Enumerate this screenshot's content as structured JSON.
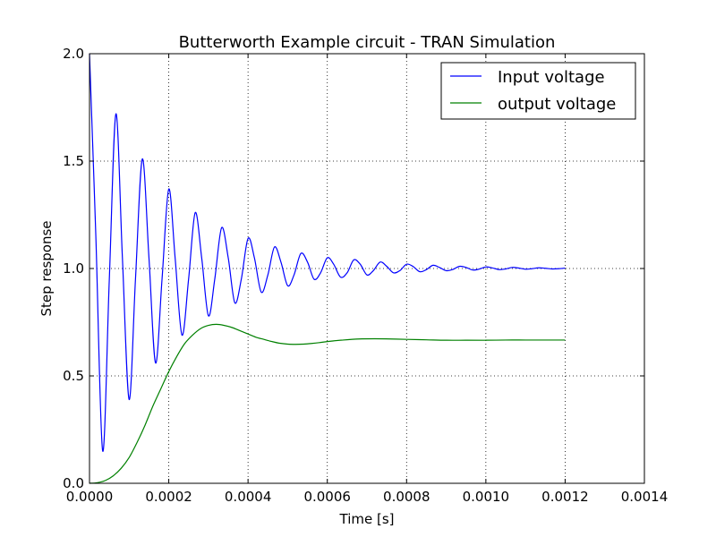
{
  "chart_data": {
    "type": "line",
    "title": "Butterworth Example circuit - TRAN Simulation",
    "xlabel": "Time [s]",
    "ylabel": "Step response",
    "xlim": [
      0,
      0.0014
    ],
    "ylim": [
      0,
      2.0
    ],
    "x_ticks": [
      "0.0000",
      "0.0002",
      "0.0004",
      "0.0006",
      "0.0008",
      "0.0010",
      "0.0012",
      "0.0014"
    ],
    "y_ticks": [
      "0.0",
      "0.5",
      "1.0",
      "1.5",
      "2.0"
    ],
    "grid": true,
    "legend_position": "top-right",
    "series": [
      {
        "name": "Input voltage",
        "color": "#0000ff",
        "x": [
          0,
          1.6e-05,
          3.33e-05,
          5e-05,
          6.67e-05,
          8.3e-05,
          0.0001,
          0.000116,
          0.0001333,
          0.00015,
          0.0001667,
          0.000183,
          0.0002,
          0.000216,
          0.0002333,
          0.00025,
          0.0002667,
          0.000283,
          0.0003,
          0.000316,
          0.0003333,
          0.00035,
          0.0003667,
          0.000383,
          0.0004,
          0.000416,
          0.0004333,
          0.00045,
          0.0004667,
          0.000483,
          0.0005,
          0.000516,
          0.0005333,
          0.00055,
          0.0005667,
          0.000583,
          0.0006,
          0.000616,
          0.0006333,
          0.00065,
          0.0006667,
          0.000683,
          0.0007,
          0.000716,
          0.0007333,
          0.00075,
          0.0007667,
          0.000783,
          0.0008,
          0.000816,
          0.0008333,
          0.00085,
          0.0008667,
          0.000883,
          0.0009,
          0.000916,
          0.0009333,
          0.00095,
          0.0009667,
          0.000983,
          0.001,
          0.001016,
          0.0010333,
          0.00105,
          0.0010667,
          0.001083,
          0.0011,
          0.001116,
          0.0011333,
          0.00115,
          0.0011667,
          0.001183,
          0.0012
        ],
        "y": [
          2.0,
          1.15,
          0.15,
          0.95,
          1.72,
          1.05,
          0.39,
          0.95,
          1.51,
          1.05,
          0.56,
          0.95,
          1.37,
          1.05,
          0.69,
          0.95,
          1.26,
          1.05,
          0.78,
          0.95,
          1.19,
          1.05,
          0.84,
          0.95,
          1.14,
          1.05,
          0.89,
          0.97,
          1.1,
          1.03,
          0.92,
          0.97,
          1.07,
          1.03,
          0.95,
          0.98,
          1.05,
          1.02,
          0.96,
          0.98,
          1.04,
          1.02,
          0.97,
          0.99,
          1.03,
          1.01,
          0.98,
          0.99,
          1.02,
          1.01,
          0.985,
          0.995,
          1.015,
          1.005,
          0.99,
          0.995,
          1.01,
          1.005,
          0.993,
          0.997,
          1.007,
          1.003,
          0.995,
          0.998,
          1.005,
          1.002,
          0.997,
          0.999,
          1.003,
          1.001,
          0.998,
          0.999,
          1.002
        ]
      },
      {
        "name": "output voltage",
        "color": "#008000",
        "x": [
          0,
          2e-05,
          4e-05,
          6e-05,
          8e-05,
          0.0001,
          0.00012,
          0.00014,
          0.00016,
          0.00018,
          0.0002,
          0.00022,
          0.00024,
          0.00026,
          0.00028,
          0.0003,
          0.00032,
          0.00034,
          0.00036,
          0.00038,
          0.0004,
          0.00042,
          0.00044,
          0.00046,
          0.00048,
          0.0005,
          0.00052,
          0.00054,
          0.00056,
          0.00058,
          0.0006,
          0.00064,
          0.00068,
          0.00072,
          0.00076,
          0.0008,
          0.00085,
          0.0009,
          0.00095,
          0.001,
          0.00105,
          0.0011,
          0.00115,
          0.0012
        ],
        "y": [
          0.0,
          0.003,
          0.013,
          0.035,
          0.07,
          0.12,
          0.19,
          0.27,
          0.36,
          0.44,
          0.52,
          0.59,
          0.65,
          0.69,
          0.72,
          0.735,
          0.74,
          0.735,
          0.725,
          0.71,
          0.695,
          0.68,
          0.67,
          0.66,
          0.652,
          0.648,
          0.647,
          0.648,
          0.651,
          0.655,
          0.66,
          0.667,
          0.672,
          0.673,
          0.672,
          0.67,
          0.668,
          0.666,
          0.666,
          0.666,
          0.667,
          0.667,
          0.667,
          0.667
        ]
      }
    ]
  }
}
